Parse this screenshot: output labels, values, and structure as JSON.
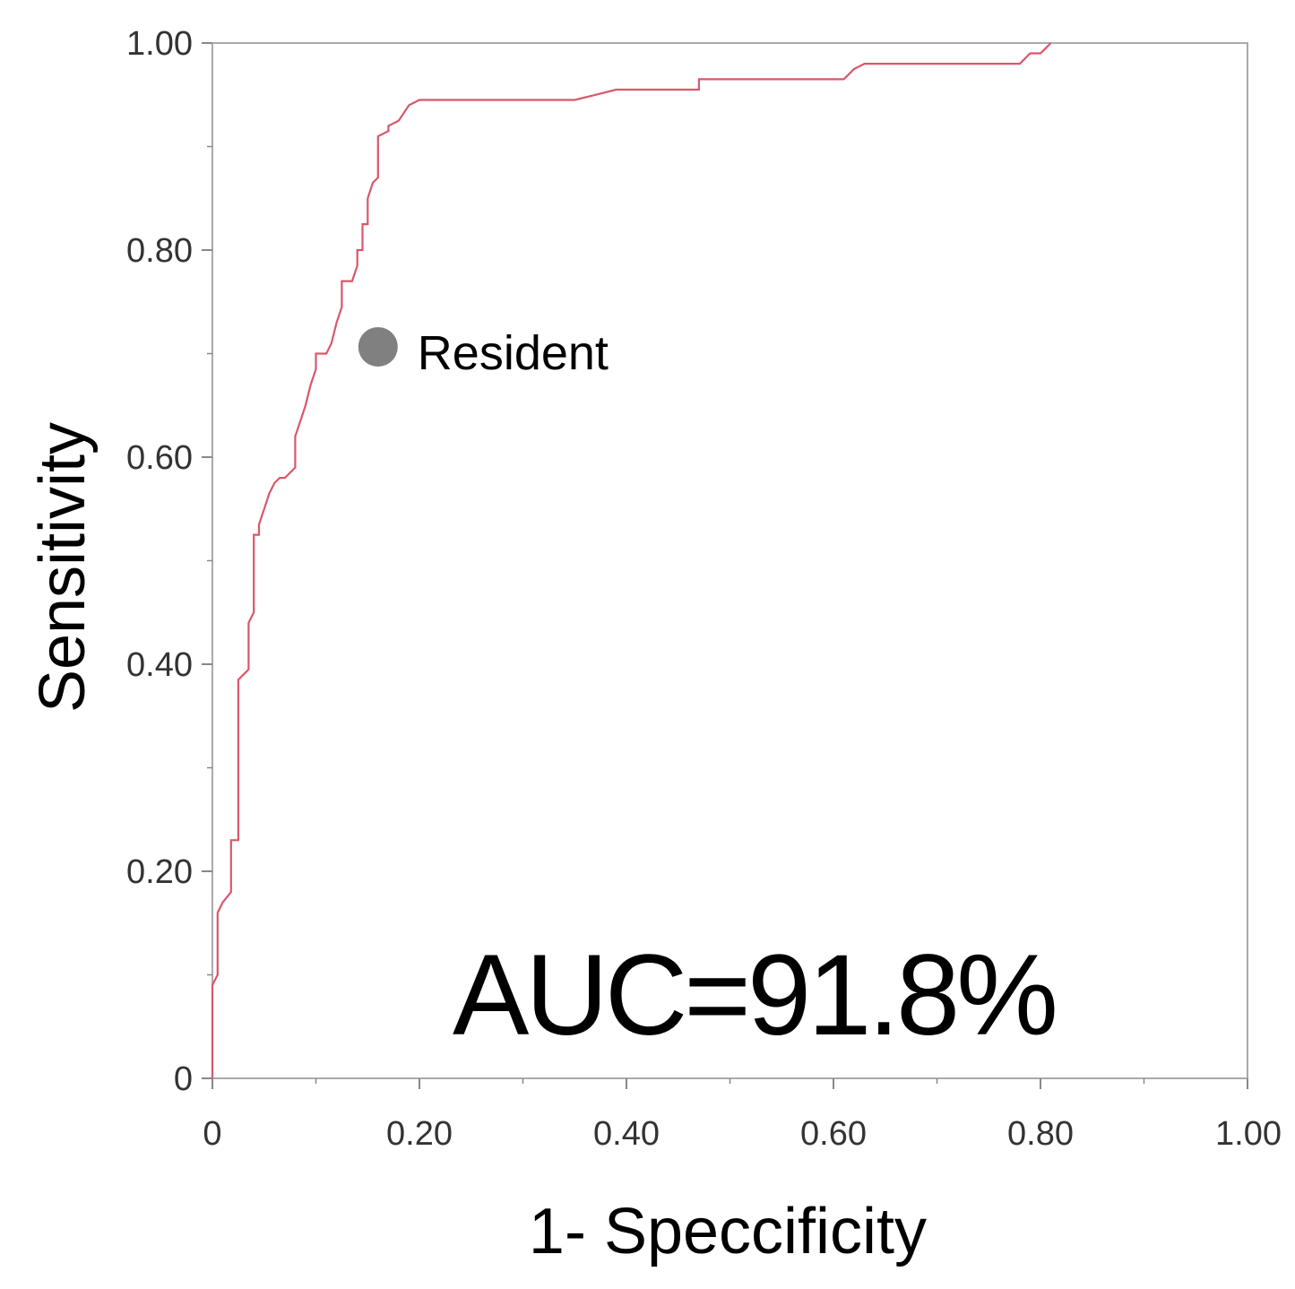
{
  "chart_data": {
    "type": "line",
    "xlabel": "1- Speccificity",
    "ylabel": "Sensitivity",
    "xlim": [
      0,
      1
    ],
    "ylim": [
      0,
      1
    ],
    "grid": false,
    "x_ticks": [
      0,
      0.2,
      0.4,
      0.6,
      0.8,
      1.0
    ],
    "x_tick_labels": [
      "0",
      "0.20",
      "0.40",
      "0.60",
      "0.80",
      "1.00"
    ],
    "y_ticks": [
      0,
      0.2,
      0.4,
      0.6,
      0.8,
      1.0
    ],
    "y_tick_labels": [
      "0",
      "0.20",
      "0.40",
      "0.60",
      "0.80",
      "1.00"
    ],
    "series": [
      {
        "color": "#d9576b",
        "x": [
          0,
          0,
          0.005,
          0.005,
          0.01,
          0.01,
          0.018,
          0.018,
          0.025,
          0.025,
          0.035,
          0.035,
          0.04,
          0.04,
          0.045,
          0.045,
          0.05,
          0.055,
          0.06,
          0.065,
          0.07,
          0.08,
          0.08,
          0.085,
          0.09,
          0.095,
          0.1,
          0.1,
          0.11,
          0.115,
          0.12,
          0.125,
          0.125,
          0.135,
          0.14,
          0.14,
          0.145,
          0.145,
          0.15,
          0.15,
          0.155,
          0.16,
          0.16,
          0.17,
          0.17,
          0.18,
          0.19,
          0.2,
          0.35,
          0.37,
          0.39,
          0.47,
          0.47,
          0.55,
          0.61,
          0.615,
          0.62,
          0.63,
          0.645,
          0.78,
          0.785,
          0.79,
          0.8,
          0.805,
          0.81
        ],
        "y": [
          0,
          0.09,
          0.1,
          0.16,
          0.17,
          0.17,
          0.18,
          0.23,
          0.23,
          0.385,
          0.395,
          0.44,
          0.45,
          0.525,
          0.525,
          0.535,
          0.55,
          0.565,
          0.575,
          0.58,
          0.58,
          0.59,
          0.62,
          0.635,
          0.65,
          0.67,
          0.685,
          0.7,
          0.7,
          0.71,
          0.73,
          0.745,
          0.77,
          0.77,
          0.785,
          0.8,
          0.8,
          0.825,
          0.825,
          0.85,
          0.865,
          0.87,
          0.91,
          0.915,
          0.92,
          0.925,
          0.94,
          0.945,
          0.945,
          0.95,
          0.955,
          0.955,
          0.965,
          0.965,
          0.965,
          0.97,
          0.975,
          0.98,
          0.98,
          0.98,
          0.985,
          0.99,
          0.99,
          0.995,
          1.0
        ]
      }
    ],
    "points": [
      {
        "label": "Resident",
        "x": 0.16,
        "y": 0.71,
        "color": "#808080"
      }
    ],
    "annotations": {
      "auc_text": "AUC=91.8%"
    }
  }
}
